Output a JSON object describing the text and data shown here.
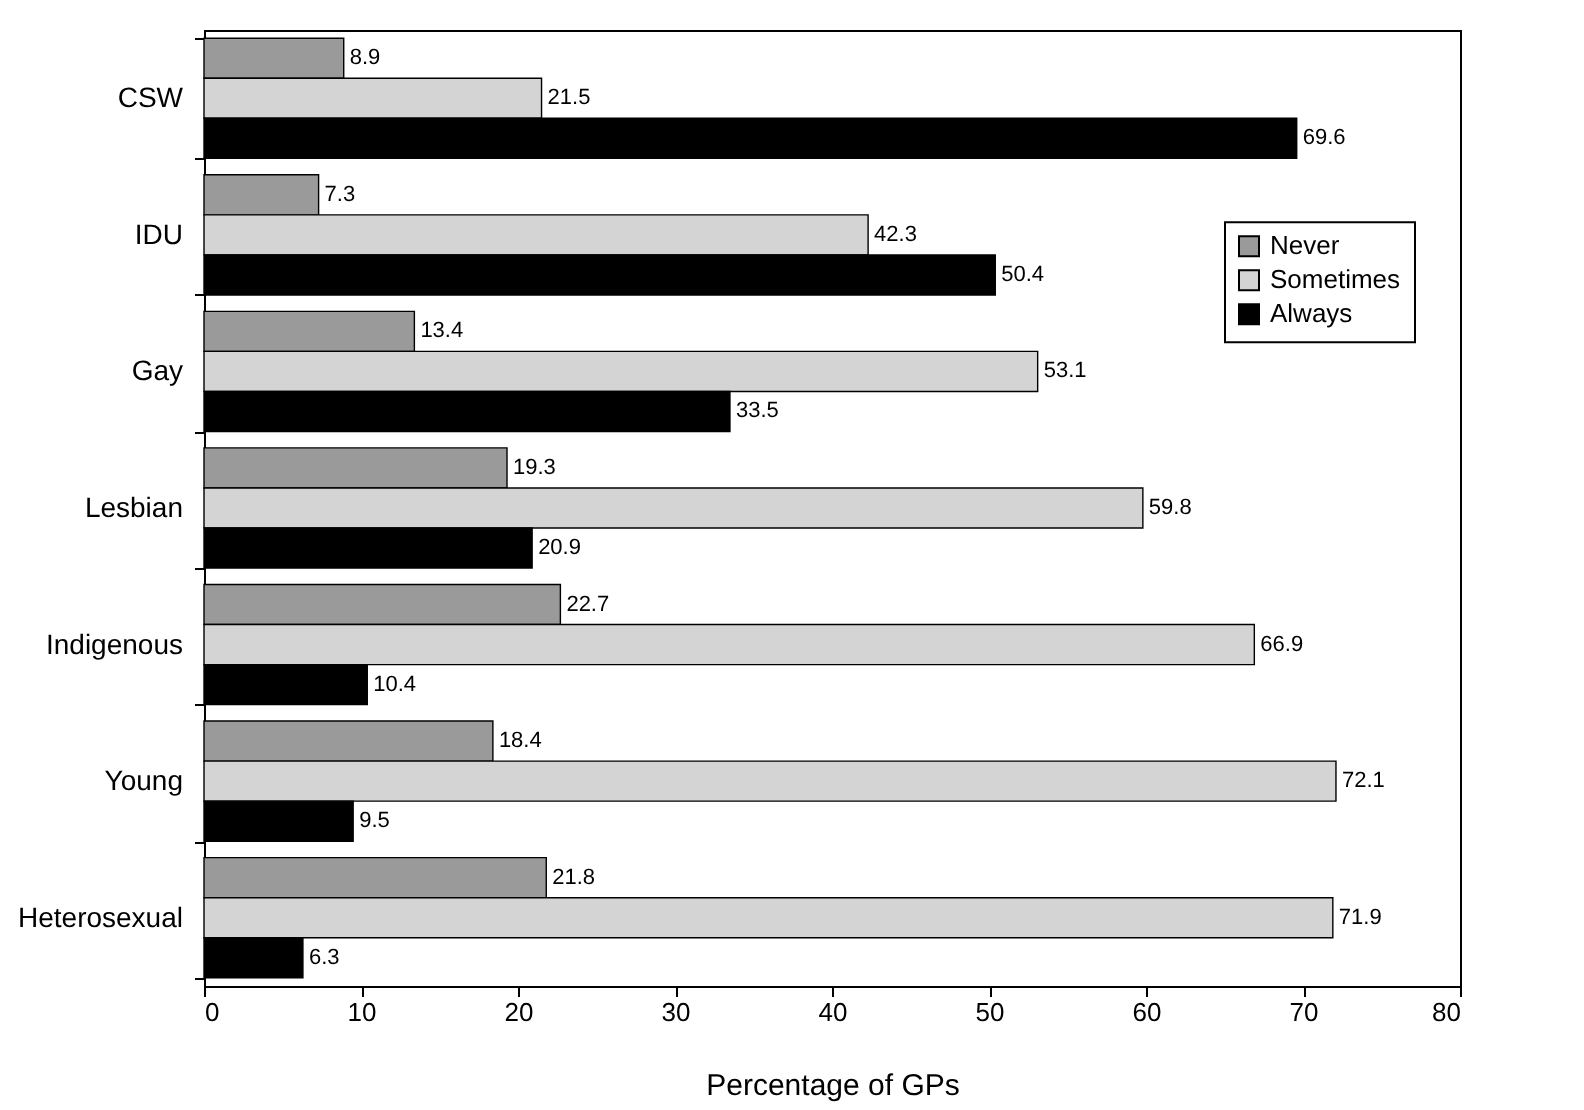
{
  "chart_data": {
    "type": "bar",
    "orientation": "horizontal",
    "xlabel": "Percentage of GPs",
    "categories": [
      "CSW",
      "IDU",
      "Gay",
      "Lesbian",
      "Indigenous",
      "Young",
      "Heterosexual"
    ],
    "series": [
      {
        "name": "Never",
        "color": "#9a9a9a",
        "values": [
          8.9,
          7.3,
          13.4,
          19.3,
          22.7,
          18.4,
          21.8
        ]
      },
      {
        "name": "Sometimes",
        "color": "#d4d4d4",
        "values": [
          21.5,
          42.3,
          53.1,
          59.8,
          66.9,
          72.1,
          71.9
        ]
      },
      {
        "name": "Always",
        "color": "#000000",
        "values": [
          69.6,
          50.4,
          33.5,
          20.9,
          10.4,
          9.5,
          6.3
        ]
      }
    ],
    "xlim": [
      0,
      80
    ],
    "xticks": [
      0,
      10,
      20,
      30,
      40,
      50,
      60,
      70,
      80
    ],
    "data_labels": true,
    "legend": "right",
    "grid": false
  }
}
